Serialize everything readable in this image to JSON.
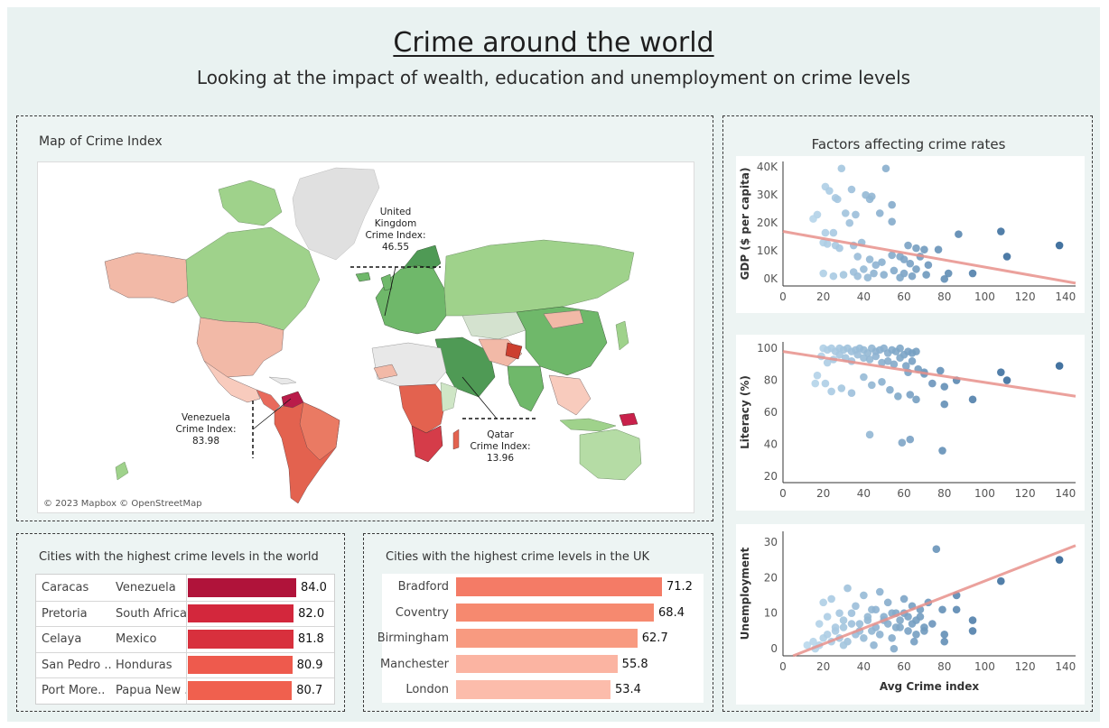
{
  "header": {
    "title": "Crime around the world",
    "subtitle": "Looking at the impact of wealth, education and unemployment on crime levels"
  },
  "map": {
    "title": "Map of Crime Index",
    "credit": "© 2023 Mapbox © OpenStreetMap",
    "annotations": [
      {
        "lines": [
          "United",
          "Kingdom",
          "Crime Index:",
          "46.55"
        ]
      },
      {
        "lines": [
          "Venezuela",
          "Crime Index:",
          "83.98"
        ]
      },
      {
        "lines": [
          "Qatar",
          "Crime Index:",
          "13.96"
        ]
      }
    ]
  },
  "world_table": {
    "title": "Cities with the highest crime levels in the world",
    "rows": [
      {
        "city": "Caracas",
        "country": "Venezuela",
        "value": 84.0,
        "label": "84.0",
        "color": "#b0133a"
      },
      {
        "city": "Pretoria",
        "country": "South Africa",
        "value": 82.0,
        "label": "82.0",
        "color": "#d3273c"
      },
      {
        "city": "Celaya",
        "country": "Mexico",
        "value": 81.8,
        "label": "81.8",
        "color": "#d8303d"
      },
      {
        "city": "San Pedro ..",
        "country": "Honduras",
        "value": 80.9,
        "label": "80.9",
        "color": "#ee5a4d"
      },
      {
        "city": "Port More..",
        "country": "Papua New ..",
        "value": 80.7,
        "label": "80.7",
        "color": "#f0604e"
      }
    ]
  },
  "uk_table": {
    "title": "Cities with the highest crime levels in the UK",
    "rows": [
      {
        "city": "Bradford",
        "value": 71.2,
        "label": "71.2",
        "color": "#f47b66"
      },
      {
        "city": "Coventry",
        "value": 68.4,
        "label": "68.4",
        "color": "#f6896f"
      },
      {
        "city": "Birmingham",
        "value": 62.7,
        "label": "62.7",
        "color": "#f89a80"
      },
      {
        "city": "Manchester",
        "value": 55.8,
        "label": "55.8",
        "color": "#fbb4a2"
      },
      {
        "city": "London",
        "value": 53.4,
        "label": "53.4",
        "color": "#fcbcab"
      }
    ]
  },
  "factors": {
    "title": "Factors affecting crime rates"
  },
  "chart_data": [
    {
      "type": "scatter",
      "ylabel": "GDP ($ per capita)",
      "xlim": [
        0,
        145
      ],
      "ylim": [
        -2500,
        42000
      ],
      "x_ticks": [
        "0",
        "20",
        "40",
        "60",
        "80",
        "100",
        "120",
        "140"
      ],
      "y_ticks": [
        "0K",
        "10K",
        "20K",
        "30K",
        "40K"
      ],
      "trend": [
        [
          0,
          17000
        ],
        [
          145,
          -1500
        ]
      ],
      "points": [
        [
          17,
          23000
        ],
        [
          15,
          21500
        ],
        [
          21,
          33000
        ],
        [
          23,
          31500
        ],
        [
          26,
          29000
        ],
        [
          29,
          39500
        ],
        [
          27,
          28500
        ],
        [
          34,
          32000
        ],
        [
          31,
          23500
        ],
        [
          33,
          20000
        ],
        [
          36,
          23000
        ],
        [
          41,
          30000
        ],
        [
          43,
          28500
        ],
        [
          44,
          29500
        ],
        [
          48,
          23500
        ],
        [
          51,
          39500
        ],
        [
          54,
          26500
        ],
        [
          54,
          20500
        ],
        [
          21,
          16500
        ],
        [
          25,
          16500
        ],
        [
          20,
          13000
        ],
        [
          22,
          12500
        ],
        [
          26,
          12000
        ],
        [
          28,
          11000
        ],
        [
          35,
          12000
        ],
        [
          39,
          13000
        ],
        [
          37,
          8000
        ],
        [
          43,
          7000
        ],
        [
          46,
          5000
        ],
        [
          49,
          6000
        ],
        [
          54,
          8500
        ],
        [
          58,
          8000
        ],
        [
          60,
          7000
        ],
        [
          63,
          5500
        ],
        [
          66,
          3500
        ],
        [
          68,
          8000
        ],
        [
          70,
          10500
        ],
        [
          72,
          5000
        ],
        [
          55,
          3000
        ],
        [
          60,
          2000
        ],
        [
          64,
          1000
        ],
        [
          50,
          1500
        ],
        [
          45,
          2000
        ],
        [
          40,
          3500
        ],
        [
          35,
          2500
        ],
        [
          30,
          1500
        ],
        [
          25,
          1000
        ],
        [
          20,
          2000
        ],
        [
          37,
          1000
        ],
        [
          42,
          500
        ],
        [
          58,
          500
        ],
        [
          71,
          1500
        ],
        [
          80,
          0
        ],
        [
          82,
          2000
        ],
        [
          77,
          10500
        ],
        [
          87,
          16000
        ],
        [
          94,
          2000
        ],
        [
          108,
          17000
        ],
        [
          111,
          8000
        ],
        [
          137,
          12000
        ],
        [
          66,
          11000
        ],
        [
          62,
          12000
        ]
      ]
    },
    {
      "type": "scatter",
      "ylabel": "Literacy (%)",
      "xlim": [
        0,
        145
      ],
      "ylim": [
        16,
        104
      ],
      "x_ticks": [
        "0",
        "20",
        "40",
        "60",
        "80",
        "100",
        "120",
        "140"
      ],
      "y_ticks": [
        "20",
        "40",
        "60",
        "80",
        "100"
      ],
      "trend": [
        [
          0,
          98
        ],
        [
          145,
          70
        ]
      ],
      "points": [
        [
          20,
          100
        ],
        [
          22,
          99
        ],
        [
          24,
          100
        ],
        [
          26,
          98
        ],
        [
          28,
          100
        ],
        [
          30,
          99
        ],
        [
          32,
          100
        ],
        [
          34,
          98
        ],
        [
          36,
          99
        ],
        [
          38,
          100
        ],
        [
          40,
          99
        ],
        [
          42,
          97
        ],
        [
          44,
          100
        ],
        [
          46,
          98
        ],
        [
          48,
          99
        ],
        [
          50,
          100
        ],
        [
          52,
          97
        ],
        [
          54,
          99
        ],
        [
          56,
          98
        ],
        [
          58,
          100
        ],
        [
          60,
          96
        ],
        [
          62,
          98
        ],
        [
          64,
          97
        ],
        [
          66,
          98
        ],
        [
          19,
          95
        ],
        [
          22,
          91
        ],
        [
          25,
          93
        ],
        [
          28,
          96
        ],
        [
          31,
          94
        ],
        [
          34,
          92
        ],
        [
          37,
          96
        ],
        [
          40,
          94
        ],
        [
          43,
          93
        ],
        [
          46,
          95
        ],
        [
          49,
          91
        ],
        [
          52,
          92
        ],
        [
          55,
          90
        ],
        [
          58,
          94
        ],
        [
          61,
          89
        ],
        [
          64,
          92
        ],
        [
          67,
          87
        ],
        [
          70,
          85
        ],
        [
          17,
          83
        ],
        [
          16,
          78
        ],
        [
          21,
          78
        ],
        [
          24,
          73
        ],
        [
          29,
          75
        ],
        [
          34,
          72
        ],
        [
          40,
          82
        ],
        [
          44,
          77
        ],
        [
          49,
          79
        ],
        [
          53,
          74
        ],
        [
          57,
          70
        ],
        [
          62,
          85
        ],
        [
          63,
          71
        ],
        [
          66,
          68
        ],
        [
          70,
          84
        ],
        [
          74,
          78
        ],
        [
          78,
          86
        ],
        [
          80,
          76
        ],
        [
          80,
          65
        ],
        [
          86,
          80
        ],
        [
          94,
          68
        ],
        [
          108,
          85
        ],
        [
          111,
          80
        ],
        [
          137,
          89
        ],
        [
          43,
          46
        ],
        [
          59,
          41
        ],
        [
          63,
          43
        ],
        [
          79,
          36
        ]
      ]
    },
    {
      "type": "scatter",
      "ylabel": "Unemployment",
      "xlabel": "Avg Crime index",
      "xlim": [
        0,
        145
      ],
      "ylim": [
        -2,
        33
      ],
      "x_ticks": [
        "0",
        "20",
        "40",
        "60",
        "80",
        "100",
        "120",
        "140"
      ],
      "y_ticks": [
        "0",
        "10",
        "20",
        "30"
      ],
      "trend": [
        [
          5,
          -2
        ],
        [
          145,
          29
        ]
      ],
      "points": [
        [
          12,
          1
        ],
        [
          15,
          2
        ],
        [
          18,
          1
        ],
        [
          20,
          3
        ],
        [
          22,
          4
        ],
        [
          24,
          2
        ],
        [
          26,
          5
        ],
        [
          28,
          3
        ],
        [
          30,
          6
        ],
        [
          32,
          2
        ],
        [
          34,
          7
        ],
        [
          36,
          4
        ],
        [
          38,
          5
        ],
        [
          40,
          3
        ],
        [
          42,
          8
        ],
        [
          44,
          5
        ],
        [
          46,
          6
        ],
        [
          48,
          4
        ],
        [
          50,
          9
        ],
        [
          52,
          7
        ],
        [
          54,
          3
        ],
        [
          56,
          6
        ],
        [
          58,
          8
        ],
        [
          60,
          10
        ],
        [
          62,
          5
        ],
        [
          64,
          7
        ],
        [
          66,
          4
        ],
        [
          68,
          9
        ],
        [
          70,
          6
        ],
        [
          20,
          13
        ],
        [
          24,
          14
        ],
        [
          28,
          10
        ],
        [
          32,
          17
        ],
        [
          36,
          12
        ],
        [
          40,
          15
        ],
        [
          44,
          11
        ],
        [
          48,
          16
        ],
        [
          52,
          13
        ],
        [
          56,
          10
        ],
        [
          60,
          14
        ],
        [
          64,
          12
        ],
        [
          68,
          11
        ],
        [
          72,
          13
        ],
        [
          18,
          7
        ],
        [
          22,
          9
        ],
        [
          26,
          6
        ],
        [
          30,
          8
        ],
        [
          34,
          10
        ],
        [
          38,
          7
        ],
        [
          42,
          9
        ],
        [
          46,
          11
        ],
        [
          50,
          8
        ],
        [
          54,
          10
        ],
        [
          58,
          6
        ],
        [
          62,
          9
        ],
        [
          66,
          8
        ],
        [
          70,
          5
        ],
        [
          74,
          7
        ],
        [
          76,
          28
        ],
        [
          79,
          11
        ],
        [
          80,
          4
        ],
        [
          80,
          2
        ],
        [
          86,
          15
        ],
        [
          86,
          11
        ],
        [
          94,
          8
        ],
        [
          94,
          5
        ],
        [
          108,
          19
        ],
        [
          137,
          25
        ],
        [
          16,
          0
        ],
        [
          30,
          1
        ],
        [
          45,
          1
        ],
        [
          55,
          0
        ],
        [
          65,
          2
        ]
      ]
    }
  ]
}
